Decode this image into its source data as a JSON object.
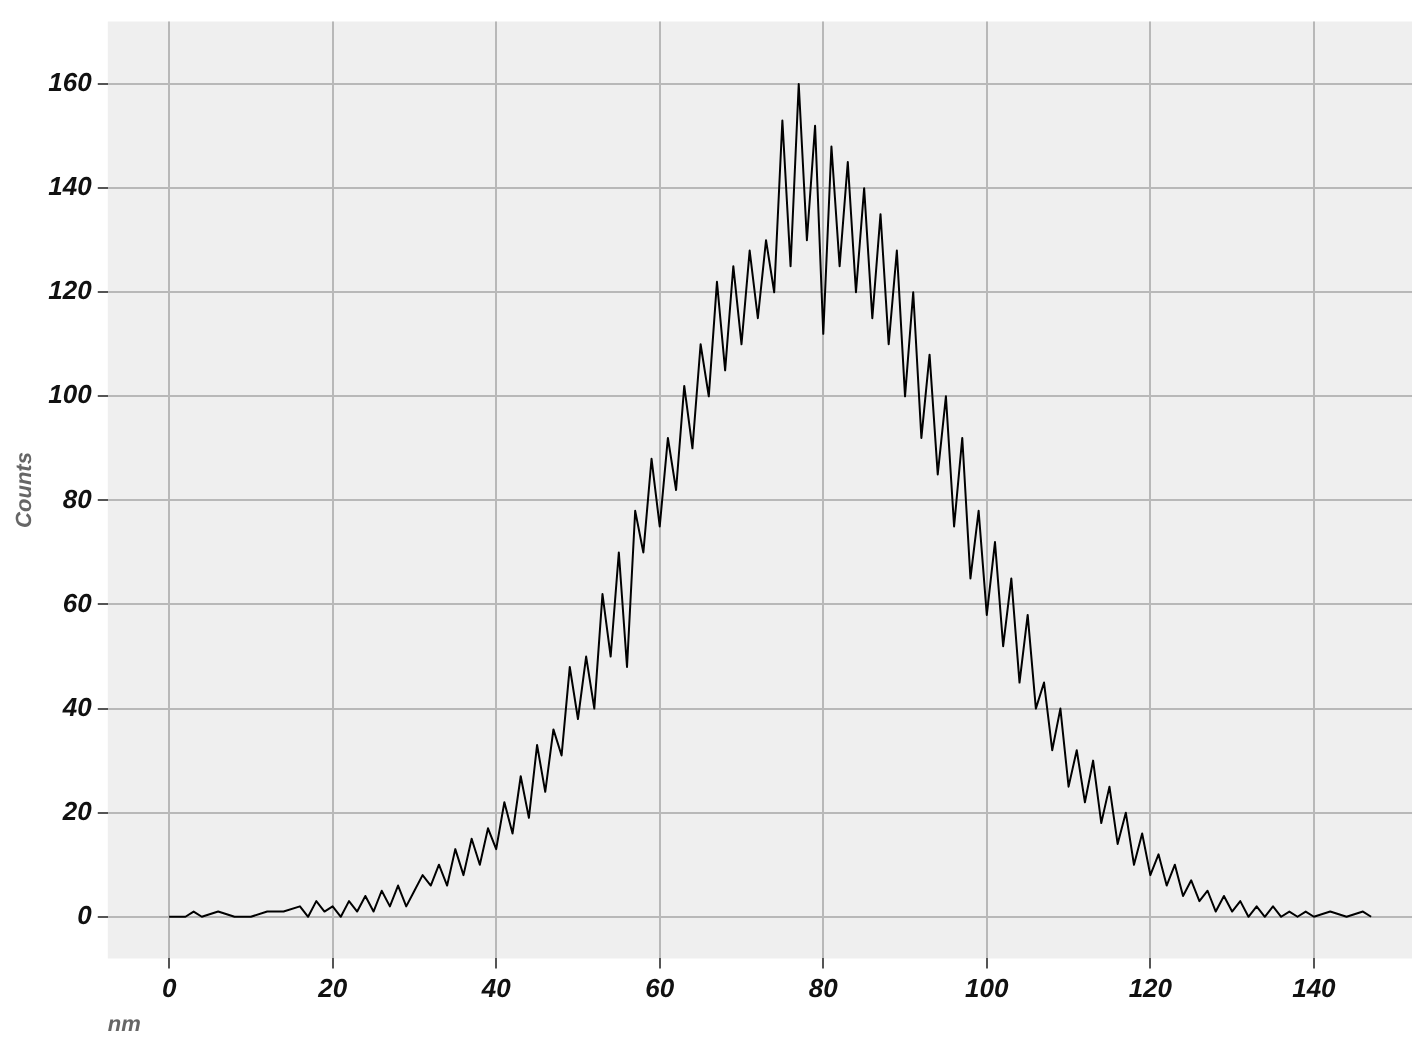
{
  "chart_data": {
    "type": "line",
    "xlabel": "nm",
    "ylabel": "Counts",
    "x": [
      0,
      2,
      3,
      4,
      6,
      8,
      10,
      12,
      14,
      16,
      17,
      18,
      19,
      20,
      21,
      22,
      23,
      24,
      25,
      26,
      27,
      28,
      29,
      30,
      31,
      32,
      33,
      34,
      35,
      36,
      37,
      38,
      39,
      40,
      41,
      42,
      43,
      44,
      45,
      46,
      47,
      48,
      49,
      50,
      51,
      52,
      53,
      54,
      55,
      56,
      57,
      58,
      59,
      60,
      61,
      62,
      63,
      64,
      65,
      66,
      67,
      68,
      69,
      70,
      71,
      72,
      73,
      74,
      75,
      76,
      77,
      78,
      79,
      80,
      81,
      82,
      83,
      84,
      85,
      86,
      87,
      88,
      89,
      90,
      91,
      92,
      93,
      94,
      95,
      96,
      97,
      98,
      99,
      100,
      101,
      102,
      103,
      104,
      105,
      106,
      107,
      108,
      109,
      110,
      111,
      112,
      113,
      114,
      115,
      116,
      117,
      118,
      119,
      120,
      121,
      122,
      123,
      124,
      125,
      126,
      127,
      128,
      129,
      130,
      131,
      132,
      133,
      134,
      135,
      136,
      137,
      138,
      139,
      140,
      142,
      144,
      146,
      147
    ],
    "series": [
      {
        "color": "#000000",
        "values": [
          0,
          0,
          1,
          0,
          1,
          0,
          0,
          1,
          1,
          2,
          0,
          3,
          1,
          2,
          0,
          3,
          1,
          4,
          1,
          5,
          2,
          6,
          2,
          5,
          8,
          6,
          10,
          6,
          13,
          8,
          15,
          10,
          17,
          13,
          22,
          16,
          27,
          19,
          33,
          24,
          36,
          31,
          48,
          38,
          50,
          40,
          62,
          50,
          70,
          48,
          78,
          70,
          88,
          75,
          92,
          82,
          102,
          90,
          110,
          100,
          122,
          105,
          125,
          110,
          128,
          115,
          130,
          120,
          153,
          125,
          160,
          130,
          152,
          112,
          148,
          125,
          145,
          120,
          140,
          115,
          135,
          110,
          128,
          100,
          120,
          92,
          108,
          85,
          100,
          75,
          92,
          65,
          78,
          58,
          72,
          52,
          65,
          45,
          58,
          40,
          45,
          32,
          40,
          25,
          32,
          22,
          30,
          18,
          25,
          14,
          20,
          10,
          16,
          8,
          12,
          6,
          10,
          4,
          7,
          3,
          5,
          1,
          4,
          1,
          3,
          0,
          2,
          0,
          2,
          0,
          1,
          0,
          1,
          0,
          1,
          0,
          1,
          0
        ]
      }
    ],
    "xlim": [
      -7.5,
      152
    ],
    "ylim": [
      -8,
      172
    ],
    "xticks": [
      0,
      20,
      40,
      60,
      80,
      100,
      120,
      140
    ],
    "yticks": [
      0,
      20,
      40,
      60,
      80,
      100,
      120,
      140,
      160
    ],
    "grid": true,
    "legend": false,
    "marker": "none",
    "line_style": "solid"
  }
}
